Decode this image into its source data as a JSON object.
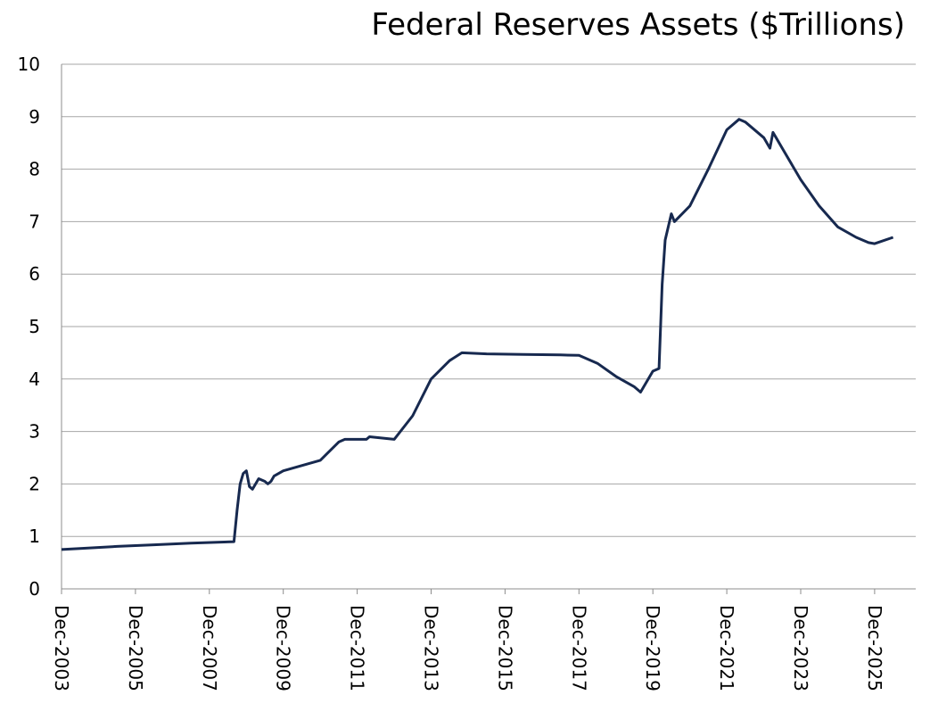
{
  "chart_data": {
    "type": "line",
    "title": "Federal Reserves Assets ($Trillions)",
    "xlabel": "",
    "ylabel": "",
    "ylim": [
      0,
      10
    ],
    "yticks": [
      "0",
      "1",
      "2",
      "3",
      "4",
      "5",
      "6",
      "7",
      "8",
      "9",
      "10"
    ],
    "xlim": [
      "2003-12",
      "2026-08"
    ],
    "xtick_labels": [
      "Dec-2003",
      "Dec-2005",
      "Dec-2007",
      "Dec-2009",
      "Dec-2011",
      "Dec-2013",
      "Dec-2015",
      "Dec-2017",
      "Dec-2019",
      "Dec-2021",
      "Dec-2023",
      "Dec-2025"
    ],
    "grid": "horizontal",
    "legend": "none",
    "line_color": "#17294f",
    "series": [
      {
        "x": [
          "2003-12",
          "2004-06",
          "2005-06",
          "2006-06",
          "2007-06",
          "2008-08",
          "2008-09",
          "2008-10",
          "2008-11",
          "2008-12",
          "2009-01",
          "2009-02",
          "2009-04",
          "2009-06",
          "2009-07",
          "2009-08",
          "2009-09",
          "2009-12",
          "2010-06",
          "2010-12",
          "2011-06",
          "2011-08",
          "2012-03",
          "2012-04",
          "2012-12",
          "2013-06",
          "2013-12",
          "2014-06",
          "2014-10",
          "2015-06",
          "2016-06",
          "2017-06",
          "2017-12",
          "2018-06",
          "2018-12",
          "2019-06",
          "2019-08",
          "2019-12",
          "2020-02",
          "2020-03",
          "2020-04",
          "2020-06",
          "2020-07",
          "2020-12",
          "2021-06",
          "2021-12",
          "2022-04",
          "2022-06",
          "2022-12",
          "2023-02",
          "2023-03",
          "2023-04",
          "2023-06",
          "2023-12",
          "2024-06",
          "2024-12",
          "2025-06",
          "2025-10",
          "2025-12",
          "2026-06"
        ],
        "y": [
          0.75,
          0.77,
          0.81,
          0.84,
          0.87,
          0.9,
          1.5,
          2.0,
          2.2,
          2.25,
          1.95,
          1.9,
          2.1,
          2.05,
          2.0,
          2.05,
          2.15,
          2.25,
          2.35,
          2.45,
          2.8,
          2.85,
          2.85,
          2.9,
          2.85,
          3.3,
          4.0,
          4.35,
          4.5,
          4.48,
          4.47,
          4.46,
          4.45,
          4.3,
          4.05,
          3.85,
          3.75,
          4.15,
          4.2,
          5.8,
          6.65,
          7.15,
          7.0,
          7.3,
          8.0,
          8.75,
          8.95,
          8.9,
          8.6,
          8.4,
          8.7,
          8.6,
          8.4,
          7.8,
          7.3,
          6.9,
          6.7,
          6.6,
          6.58,
          6.7
        ]
      }
    ]
  }
}
